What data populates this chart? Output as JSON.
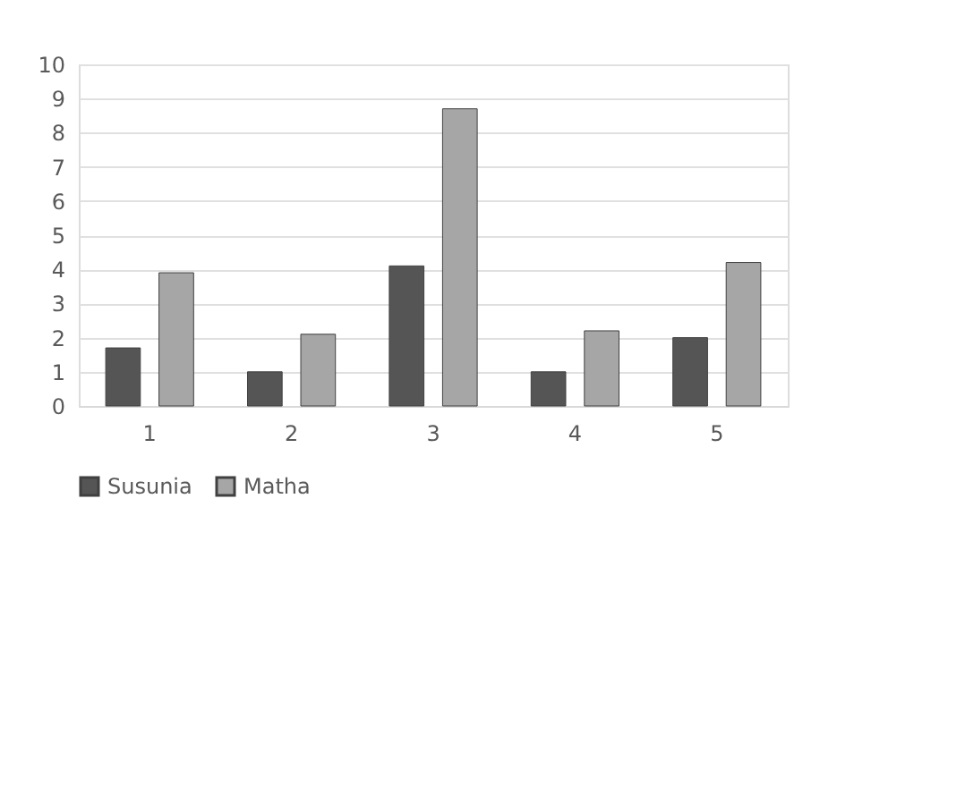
{
  "chart_data": {
    "type": "bar",
    "categories": [
      "1",
      "2",
      "3",
      "4",
      "5"
    ],
    "series": [
      {
        "name": "Susunia",
        "color": "#555555",
        "values": [
          1.7,
          1.0,
          4.1,
          1.0,
          2.0
        ]
      },
      {
        "name": "Matha",
        "color": "#a6a6a6",
        "values": [
          3.9,
          2.1,
          8.7,
          2.2,
          4.2
        ]
      }
    ],
    "ylim": [
      0,
      10
    ],
    "yticks": [
      0,
      1,
      2,
      3,
      4,
      5,
      6,
      7,
      8,
      9,
      10
    ],
    "grid": "y",
    "legend": "bottom"
  }
}
